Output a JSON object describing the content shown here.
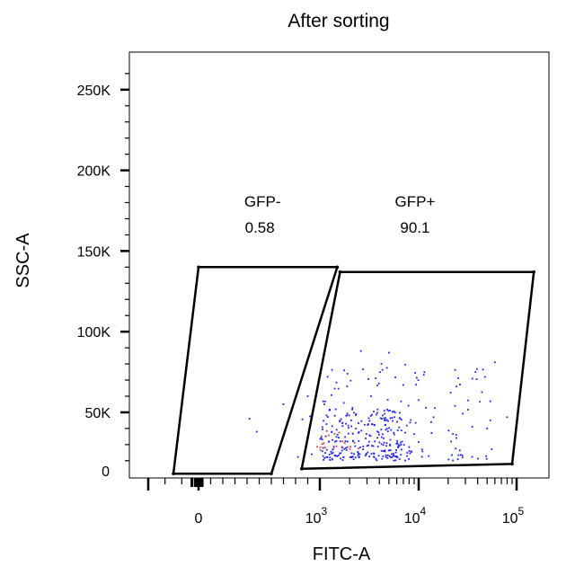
{
  "chart_data": {
    "type": "scatter",
    "title": "After sorting",
    "xlabel": "FITC-A",
    "ylabel": "SSC-A",
    "x_scale": "biexponential",
    "ylim": [
      0,
      262144
    ],
    "y_ticks": [
      {
        "value": 0,
        "label": "0"
      },
      {
        "value": 50000,
        "label": "50K"
      },
      {
        "value": 100000,
        "label": "100K"
      },
      {
        "value": 150000,
        "label": "150K"
      },
      {
        "value": 200000,
        "label": "200K"
      },
      {
        "value": 250000,
        "label": "250K"
      }
    ],
    "x_ticks": [
      {
        "value": 0,
        "base": "0",
        "exp": ""
      },
      {
        "value": 1000,
        "base": "10",
        "exp": "3"
      },
      {
        "value": 10000,
        "base": "10",
        "exp": "4"
      },
      {
        "value": 100000,
        "base": "10",
        "exp": "5"
      }
    ],
    "gates": [
      {
        "name": "GFP-",
        "percent": "0.58",
        "polygon": [
          [
            -150,
            12000
          ],
          [
            0,
            140000
          ],
          [
            1500,
            140000
          ],
          [
            600,
            12000
          ]
        ]
      },
      {
        "name": "GFP+",
        "percent": "90.1",
        "polygon": [
          [
            850,
            15000
          ],
          [
            1600,
            137000
          ],
          [
            124000,
            137000
          ],
          [
            90000,
            18000
          ]
        ]
      }
    ],
    "events_description": "blue dot events, densest around x 1000-3000 and y 20000-45000",
    "point_color": "#2222ee",
    "dense_point_color": "#d04040",
    "grid": false,
    "legend": "none"
  }
}
